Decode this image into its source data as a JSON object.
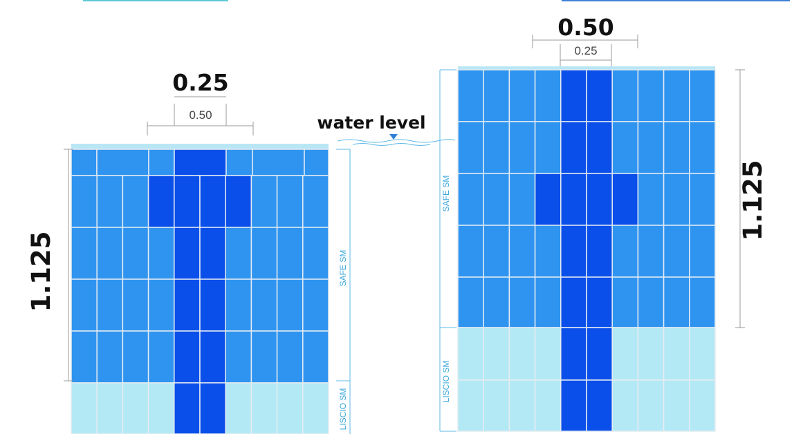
{
  "colors": {
    "medium_blue": "#2f94f0",
    "dark_blue": "#0a4fea",
    "light_blue": "#b3e9f5",
    "grid_line": "#e6ecf2",
    "top_band": "#b9e6f5",
    "accent_line": "#5cb8e6"
  },
  "water_level": {
    "label": "water level"
  },
  "left_panel": {
    "top_label": "0.25",
    "inner_label": "0.50",
    "height_label": "1.125",
    "zone_upper": "SAFE SM",
    "zone_lower": "LISCIO SM"
  },
  "right_panel": {
    "top_label": "0.50",
    "inner_label": "0.25",
    "height_label": "1.125",
    "zone_upper": "SAFE SM",
    "zone_lower": "LISCIO SM"
  }
}
